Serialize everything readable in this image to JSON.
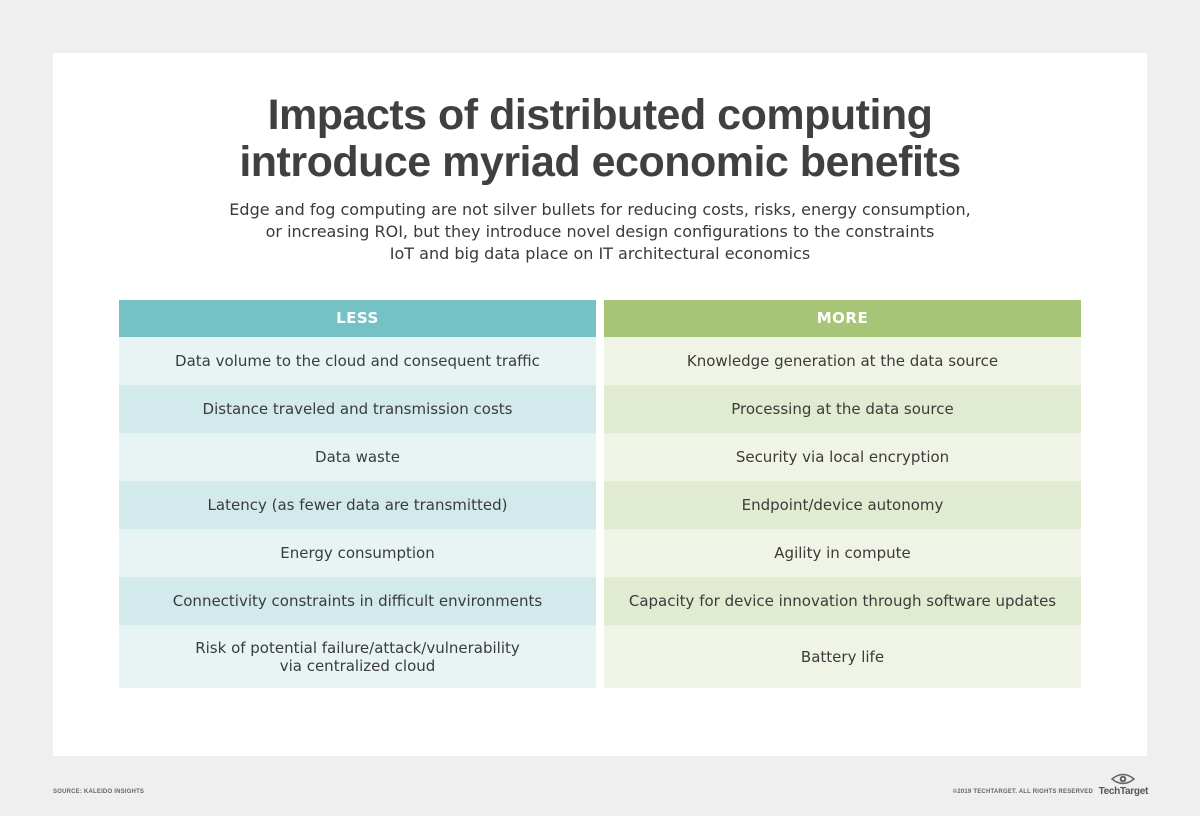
{
  "title": {
    "line1": "Impacts of distributed computing",
    "line2": "introduce myriad economic benefits"
  },
  "subtitle": {
    "line1": "Edge and fog computing are not silver bullets for reducing costs, risks, energy consumption,",
    "line2": "or increasing ROI, but they introduce novel design configurations to the constraints",
    "line3": "IoT and big data place on IT architectural economics"
  },
  "table": {
    "less": {
      "header": "LESS",
      "rows": [
        "Data volume to the cloud and consequent traffic",
        "Distance traveled and transmission costs",
        "Data waste",
        "Latency (as fewer data are transmitted)",
        "Energy consumption",
        "Connectivity constraints in difficult environments",
        "Risk of potential failure/attack/vulnerability\nvia centralized cloud"
      ]
    },
    "more": {
      "header": "MORE",
      "rows": [
        "Knowledge generation at the data source",
        "Processing at the data source",
        "Security via local encryption",
        "Endpoint/device autonomy",
        "Agility in compute",
        "Capacity for device innovation through software updates",
        "Battery life"
      ]
    }
  },
  "footer": {
    "source": "SOURCE: KALEIDO INSIGHTS",
    "copyright": "©2019 TECHTARGET. ALL RIGHTS RESERVED",
    "logo_text": "TechTarget",
    "logo_icon": "eye-icon"
  },
  "colors": {
    "less_header": "#74c2c6",
    "more_header": "#a6c577",
    "title": "#404040"
  }
}
